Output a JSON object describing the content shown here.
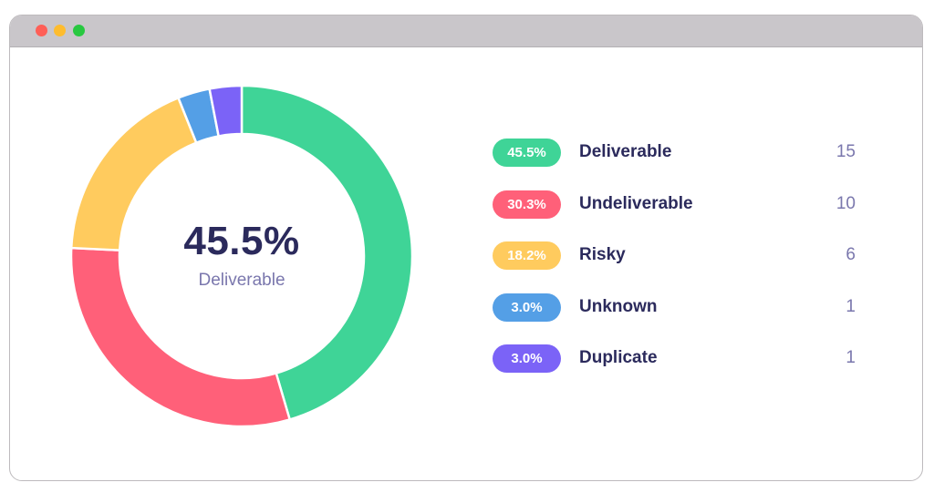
{
  "window": {
    "controls": [
      {
        "name": "close",
        "color": "#ff5f57"
      },
      {
        "name": "minimize",
        "color": "#febc2e"
      },
      {
        "name": "maximize",
        "color": "#28c840"
      }
    ]
  },
  "center": {
    "value": "45.5%",
    "label": "Deliverable"
  },
  "chart_data": {
    "type": "pie",
    "donut": true,
    "start_angle_deg": 0,
    "direction": "clockwise",
    "categories": [
      "Deliverable",
      "Undeliverable",
      "Risky",
      "Unknown",
      "Duplicate"
    ],
    "values": [
      15,
      10,
      6,
      1,
      1
    ],
    "percent_labels": [
      "45.5%",
      "30.3%",
      "18.2%",
      "3.0%",
      "3.0%"
    ],
    "colors": [
      "#3fd497",
      "#ff6079",
      "#ffcb5e",
      "#549fe6",
      "#7b63f7"
    ],
    "center_value": "45.5%",
    "center_label": "Deliverable",
    "legend_placement": "right"
  }
}
